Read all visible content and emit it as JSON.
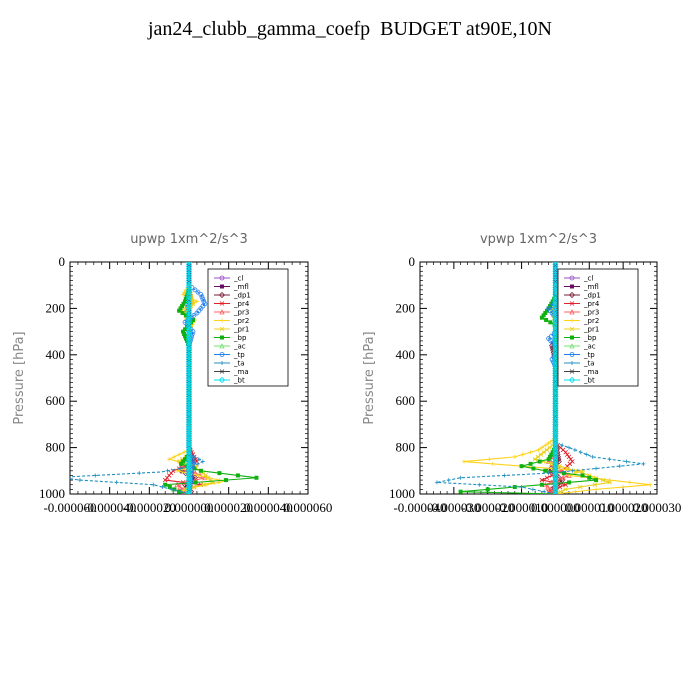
{
  "title": "jan24_clubb_gamma_coefp  BUDGET at90E,10N",
  "legend_entries": [
    "_cl",
    "_mfl",
    "_dp1",
    "_pr4",
    "_pr3",
    "_pr2",
    "_pr1",
    "_bp",
    "_ac",
    "_tp",
    "_ta",
    "_ma",
    "_bt"
  ],
  "chart_data": [
    {
      "type": "line",
      "title": "upwp   1xm^2/s^3",
      "ylabel": "Pressure [hPa]",
      "ylim": [
        1000,
        0
      ],
      "yticks": [
        "0",
        "200",
        "400",
        "600",
        "800",
        "1000"
      ],
      "xlim": [
        -6e-05,
        6e-05
      ],
      "xticks": [
        "-0.000060",
        "-0.000040",
        "-0.000020",
        "0.000000",
        "0.000020",
        "0.000040",
        "0.000060"
      ],
      "legend_placement": "top-right",
      "series": [
        {
          "name": "_cl",
          "color": "#9b4fc9",
          "points": [
            [
              0,
              0
            ],
            [
              0,
              1000
            ]
          ]
        },
        {
          "name": "_mfl",
          "color": "#6a0d6a",
          "points": [
            [
              0,
              0
            ],
            [
              0,
              1000
            ]
          ]
        },
        {
          "name": "_dp1",
          "color": "#7a1f3a",
          "points": [
            [
              0,
              120
            ],
            [
              1e-06,
              170
            ],
            [
              -1e-06,
              200
            ],
            [
              0,
              260
            ],
            [
              0,
              800
            ],
            [
              2e-06,
              870
            ],
            [
              -4e-06,
              900
            ],
            [
              3e-06,
              930
            ],
            [
              -2e-06,
              960
            ],
            [
              1e-06,
              990
            ],
            [
              0,
              1000
            ]
          ]
        },
        {
          "name": "_pr4",
          "color": "#e0202a",
          "points": [
            [
              0,
              800
            ],
            [
              4e-06,
              860
            ],
            [
              -8e-06,
              900
            ],
            [
              -1.2e-05,
              940
            ],
            [
              6e-06,
              960
            ],
            [
              -3e-06,
              985
            ],
            [
              0,
              1000
            ]
          ]
        },
        {
          "name": "_pr3",
          "color": "#ff6060",
          "points": [
            [
              0,
              820
            ],
            [
              -4e-06,
              880
            ],
            [
              8e-06,
              930
            ],
            [
              -6e-06,
              960
            ],
            [
              0,
              1000
            ]
          ]
        },
        {
          "name": "_pr2",
          "color": "#ffd21a",
          "points": [
            [
              0,
              100
            ],
            [
              -3e-06,
              140
            ],
            [
              4e-06,
              170
            ],
            [
              -4e-06,
              210
            ],
            [
              3e-06,
              250
            ],
            [
              0,
              300
            ],
            [
              0,
              810
            ],
            [
              -1e-05,
              850
            ],
            [
              4e-06,
              880
            ],
            [
              -6e-06,
              900
            ],
            [
              1.8e-05,
              945
            ],
            [
              3e-06,
              970
            ],
            [
              -5e-06,
              990
            ],
            [
              0,
              1000
            ]
          ]
        },
        {
          "name": "_pr1",
          "color": "#e8d020",
          "points": [
            [
              0,
              120
            ],
            [
              2e-06,
              180
            ],
            [
              -2e-06,
              220
            ],
            [
              0,
              280
            ],
            [
              0,
              830
            ],
            [
              -5e-06,
              860
            ],
            [
              6e-06,
              900
            ],
            [
              1.2e-05,
              950
            ],
            [
              -2e-06,
              980
            ],
            [
              0,
              1000
            ]
          ]
        },
        {
          "name": "_bp",
          "color": "#10b010",
          "points": [
            [
              0,
              120
            ],
            [
              -2e-06,
              170
            ],
            [
              -5e-06,
              210
            ],
            [
              2e-06,
              250
            ],
            [
              -3e-06,
              300
            ],
            [
              0,
              360
            ],
            [
              0,
              830
            ],
            [
              -4e-06,
              870
            ],
            [
              6e-06,
              900
            ],
            [
              3.4e-05,
              930
            ],
            [
              -1.2e-05,
              960
            ],
            [
              -5e-06,
              990
            ],
            [
              0,
              1000
            ]
          ]
        },
        {
          "name": "_ac",
          "color": "#70e070",
          "points": [
            [
              0,
              700
            ],
            [
              0,
              1000
            ]
          ]
        },
        {
          "name": "_tp",
          "color": "#2080f0",
          "points": [
            [
              0,
              100
            ],
            [
              6e-06,
              140
            ],
            [
              8e-06,
              180
            ],
            [
              4e-06,
              220
            ],
            [
              -2e-06,
              260
            ],
            [
              2e-06,
              300
            ],
            [
              0,
              360
            ],
            [
              0,
              820
            ],
            [
              2e-06,
              860
            ],
            [
              0,
              1000
            ]
          ]
        },
        {
          "name": "_ta",
          "color": "#2090c0",
          "points": [
            [
              0,
              830
            ],
            [
              5e-06,
              850
            ],
            [
              7e-06,
              860
            ],
            [
              2e-06,
              880
            ],
            [
              -1.4e-05,
              905
            ],
            [
              -6.5e-05,
              928
            ],
            [
              -5.5e-05,
              940
            ],
            [
              -1.8e-05,
              960
            ],
            [
              -4e-06,
              990
            ],
            [
              0,
              1000
            ]
          ]
        },
        {
          "name": "_ma",
          "color": "#404040",
          "points": [
            [
              0,
              0
            ],
            [
              0,
              1000
            ]
          ]
        },
        {
          "name": "_bt",
          "color": "#00e0f0",
          "points": [
            [
              0,
              0
            ],
            [
              0,
              1000
            ]
          ]
        }
      ]
    },
    {
      "type": "line",
      "title": "vpwp   1xm^2/s^3",
      "ylabel": "Pressure [hPa]",
      "ylim": [
        1000,
        0
      ],
      "yticks": [
        "0",
        "200",
        "400",
        "600",
        "800",
        "1000"
      ],
      "xlim": [
        -4e-05,
        3e-05
      ],
      "xticks": [
        "-0.000040",
        "-0.000030",
        "-0.000020",
        "-0.000010",
        "0.000000",
        "0.000010",
        "0.000020",
        "0.000030"
      ],
      "legend_placement": "top-right",
      "series": [
        {
          "name": "_cl",
          "color": "#9b4fc9",
          "points": [
            [
              0,
              0
            ],
            [
              0,
              1000
            ]
          ]
        },
        {
          "name": "_mfl",
          "color": "#6a0d6a",
          "points": [
            [
              0,
              0
            ],
            [
              0,
              1000
            ]
          ]
        },
        {
          "name": "_dp1",
          "color": "#7a1f3a",
          "points": [
            [
              0,
              300
            ],
            [
              1e-06,
              330
            ],
            [
              -1e-06,
              360
            ],
            [
              0,
              420
            ],
            [
              0,
              780
            ],
            [
              1e-06,
              860
            ],
            [
              -2e-06,
              900
            ],
            [
              2e-06,
              940
            ],
            [
              -1e-06,
              980
            ],
            [
              0,
              1000
            ]
          ]
        },
        {
          "name": "_pr4",
          "color": "#e0202a",
          "points": [
            [
              0,
              780
            ],
            [
              3e-06,
              820
            ],
            [
              5e-06,
              860
            ],
            [
              2e-06,
              900
            ],
            [
              -4e-06,
              940
            ],
            [
              3e-06,
              960
            ],
            [
              -2e-06,
              990
            ],
            [
              0,
              1000
            ]
          ]
        },
        {
          "name": "_pr3",
          "color": "#ff6060",
          "points": [
            [
              0,
              800
            ],
            [
              -2e-06,
              860
            ],
            [
              4e-06,
              920
            ],
            [
              -3e-06,
              960
            ],
            [
              0,
              1000
            ]
          ]
        },
        {
          "name": "_pr2",
          "color": "#ffd21a",
          "points": [
            [
              0,
              760
            ],
            [
              -5e-06,
              810
            ],
            [
              -1.2e-05,
              840
            ],
            [
              -2.7e-05,
              860
            ],
            [
              -1e-05,
              880
            ],
            [
              8e-06,
              900
            ],
            [
              4e-06,
              920
            ],
            [
              2.8e-05,
              960
            ],
            [
              1.2e-05,
              980
            ],
            [
              0,
              1000
            ]
          ]
        },
        {
          "name": "_pr1",
          "color": "#e8d020",
          "points": [
            [
              0,
              100
            ],
            [
              1e-06,
              160
            ],
            [
              -1e-06,
              200
            ],
            [
              0,
              260
            ],
            [
              0,
              780
            ],
            [
              -6e-06,
              850
            ],
            [
              6e-06,
              900
            ],
            [
              1.6e-05,
              950
            ],
            [
              3e-06,
              980
            ],
            [
              0,
              1000
            ]
          ]
        },
        {
          "name": "_bp",
          "color": "#10b010",
          "points": [
            [
              0,
              150
            ],
            [
              -2e-06,
              200
            ],
            [
              -4e-06,
              240
            ],
            [
              1e-06,
              280
            ],
            [
              0,
              330
            ],
            [
              0,
              800
            ],
            [
              -2e-06,
              850
            ],
            [
              -1e-05,
              880
            ],
            [
              -3e-06,
              900
            ],
            [
              8e-06,
              920
            ],
            [
              1.2e-05,
              940
            ],
            [
              -4e-06,
              960
            ],
            [
              -2.8e-05,
              990
            ],
            [
              0,
              1000
            ]
          ]
        },
        {
          "name": "_ac",
          "color": "#70e070",
          "points": [
            [
              0,
              700
            ],
            [
              0,
              1000
            ]
          ]
        },
        {
          "name": "_tp",
          "color": "#2080f0",
          "points": [
            [
              0,
              100
            ],
            [
              2e-06,
              150
            ],
            [
              -2e-06,
              200
            ],
            [
              2e-06,
              280
            ],
            [
              -2e-06,
              330
            ],
            [
              1e-06,
              380
            ],
            [
              -1e-06,
              420
            ],
            [
              0,
              450
            ],
            [
              0,
              1000
            ]
          ]
        },
        {
          "name": "_ta",
          "color": "#2090c0",
          "points": [
            [
              0,
              780
            ],
            [
              4e-06,
              800
            ],
            [
              1.1e-05,
              840
            ],
            [
              2.6e-05,
              870
            ],
            [
              1.2e-05,
              890
            ],
            [
              -2e-06,
              910
            ],
            [
              -2.8e-05,
              930
            ],
            [
              -3.5e-05,
              950
            ],
            [
              -1e-05,
              970
            ],
            [
              0,
              1000
            ]
          ]
        },
        {
          "name": "_ma",
          "color": "#404040",
          "points": [
            [
              0,
              0
            ],
            [
              0,
              1000
            ]
          ]
        },
        {
          "name": "_bt",
          "color": "#00e0f0",
          "points": [
            [
              0,
              0
            ],
            [
              0,
              1000
            ]
          ]
        }
      ]
    }
  ]
}
